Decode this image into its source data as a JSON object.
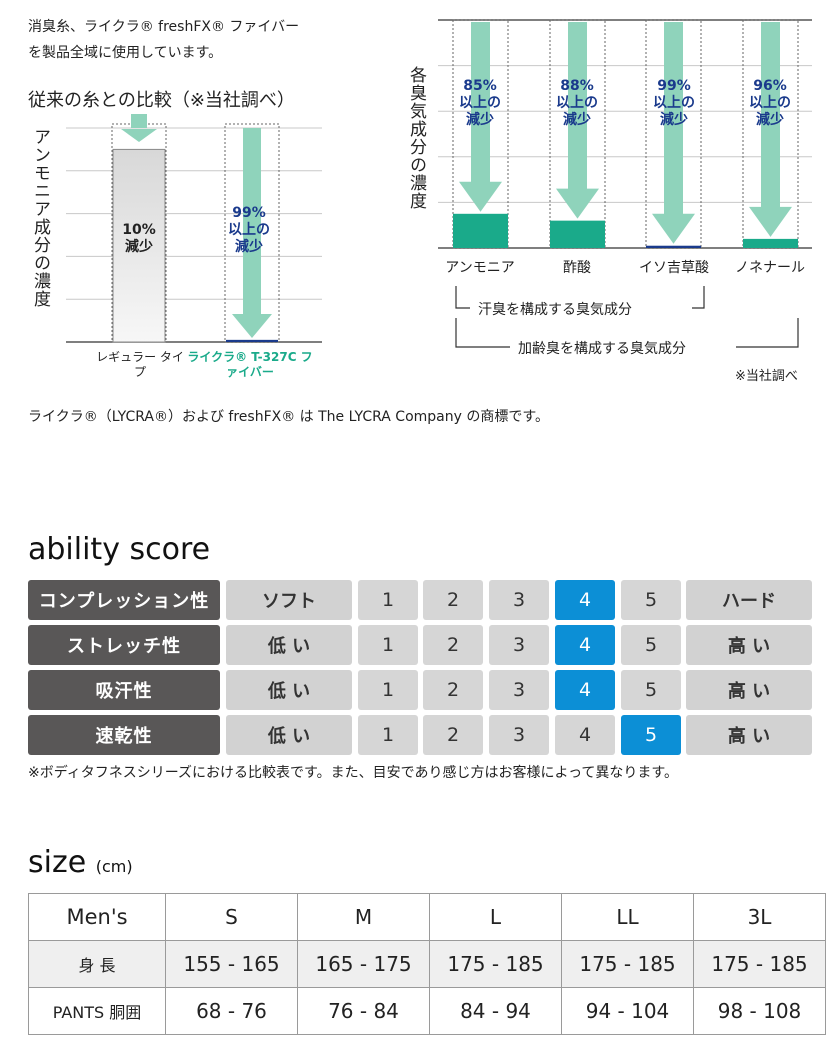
{
  "intro": {
    "line1": "消臭糸、ライクラ® freshFX® ファイバー",
    "line2": "を製品全域に使用しています。"
  },
  "comparison": {
    "title": "従来の糸との比較（※当社調べ）",
    "ylabel": "アンモニア成分の濃度"
  },
  "odor": {
    "ylabel": "各臭気成分の濃度",
    "note": "※当社調べ",
    "bracket_sweat": "汗臭を構成する臭気成分",
    "bracket_aging": "加齢臭を構成する臭気成分"
  },
  "chart_data": [
    {
      "type": "bar",
      "title": "従来の糸との比較（※当社調べ）",
      "ylabel": "アンモニア成分の濃度",
      "categories": [
        "レギュラー タイプ",
        "ライクラ® T-327C ファイバー"
      ],
      "values": [
        90,
        1
      ],
      "annotations": [
        {
          "line1": "10%",
          "line2": "減少"
        },
        {
          "line1": "99%",
          "line2": "以上の",
          "line3": "減少"
        }
      ]
    },
    {
      "type": "bar",
      "ylabel": "各臭気成分の濃度",
      "categories": [
        "アンモニア",
        "酢酸",
        "イソ吉草酸",
        "ノネナール"
      ],
      "values": [
        15,
        12,
        1,
        4
      ],
      "annotations": [
        {
          "line1": "85%",
          "line2": "以上の",
          "line3": "減少"
        },
        {
          "line1": "88%",
          "line2": "以上の",
          "line3": "減少"
        },
        {
          "line1": "99%",
          "line2": "以上の",
          "line3": "減少"
        },
        {
          "line1": "96%",
          "line2": "以上の",
          "line3": "減少"
        }
      ]
    }
  ],
  "trademark": "ライクラ®（LYCRA®）および freshFX® は The LYCRA Company の商標です。",
  "ability": {
    "title": "ability score",
    "rows": [
      {
        "label": "コンプレッション性",
        "low": "ソフト",
        "high": "ハード",
        "nums": [
          "1",
          "2",
          "3",
          "4",
          "5"
        ],
        "selected": 4
      },
      {
        "label": "ストレッチ性",
        "low": "低 い",
        "high": "高 い",
        "nums": [
          "1",
          "2",
          "3",
          "4",
          "5"
        ],
        "selected": 4
      },
      {
        "label": "吸汗性",
        "low": "低 い",
        "high": "高 い",
        "nums": [
          "1",
          "2",
          "3",
          "4",
          "5"
        ],
        "selected": 4
      },
      {
        "label": "速乾性",
        "low": "低 い",
        "high": "高 い",
        "nums": [
          "1",
          "2",
          "3",
          "4",
          "5"
        ],
        "selected": 5
      }
    ],
    "note": "※ボディタフネスシリーズにおける比較表です。また、目安であり感じ方はお客様によって異なります。"
  },
  "size": {
    "title": "size",
    "unit": "(cm)",
    "headers": [
      "Men's",
      "S",
      "M",
      "L",
      "LL",
      "3L"
    ],
    "rows": [
      {
        "label": "身 長",
        "values": [
          "155 - 165",
          "165 - 175",
          "175 - 185",
          "175 - 185",
          "175 - 185"
        ]
      },
      {
        "label": "PANTS 胴囲",
        "values": [
          "68 - 76",
          "76 - 84",
          "84 - 94",
          "94 - 104",
          "98 - 108"
        ]
      }
    ]
  },
  "colors": {
    "teal": "#1aaa8a",
    "arrow": "#8fd3bb",
    "navy": "#1a3a8c",
    "selected": "#0c8fd6",
    "label_bg": "#595757"
  }
}
